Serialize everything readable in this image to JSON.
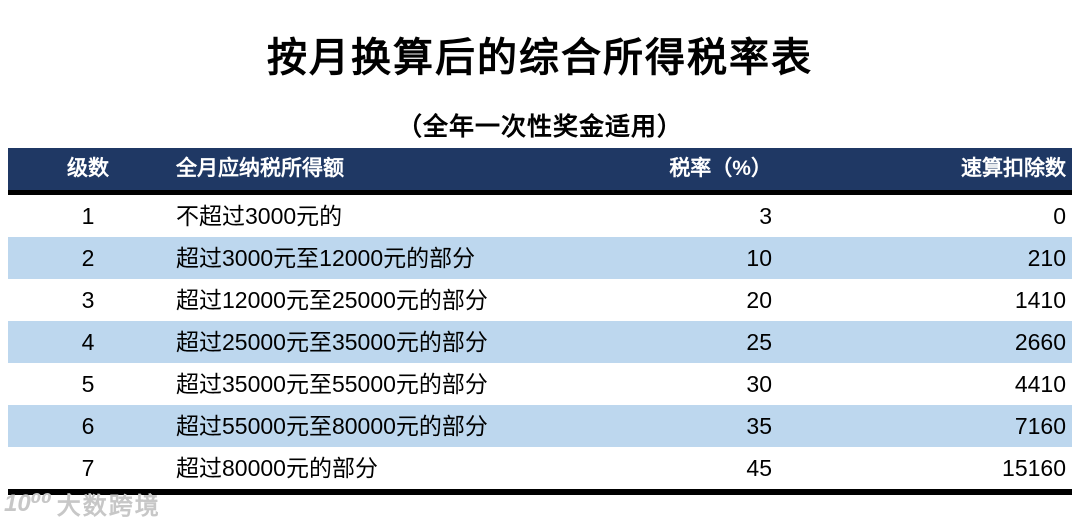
{
  "title": "按月换算后的综合所得税率表",
  "subtitle": "（全年一次性奖金适用）",
  "table": {
    "columns": [
      {
        "key": "level",
        "label": "级数",
        "align": "center"
      },
      {
        "key": "income",
        "label": "全月应纳税所得额",
        "align": "left"
      },
      {
        "key": "rate",
        "label": "税率（%）",
        "align": "right"
      },
      {
        "key": "deduction",
        "label": "速算扣除数",
        "align": "right"
      }
    ],
    "rows": [
      [
        "1",
        "不超过3000元的",
        "3",
        "0"
      ],
      [
        "2",
        "超过3000元至12000元的部分",
        "10",
        "210"
      ],
      [
        "3",
        "超过12000元至25000元的部分",
        "20",
        "1410"
      ],
      [
        "4",
        "超过25000元至35000元的部分",
        "25",
        "2660"
      ],
      [
        "5",
        "超过35000元至55000元的部分",
        "30",
        "4410"
      ],
      [
        "6",
        "超过55000元至80000元的部分",
        "35",
        "7160"
      ],
      [
        "7",
        "超过80000元的部分",
        "45",
        "15160"
      ]
    ]
  },
  "watermark": {
    "logo": "10⁰⁰",
    "text": "大数跨境"
  },
  "colors": {
    "header_bg": "#1F3864",
    "stripe_bg": "#BDD7EE",
    "header_text": "#FFFFFF",
    "rule": "#000000",
    "watermark_text": "#C7C7C7"
  }
}
